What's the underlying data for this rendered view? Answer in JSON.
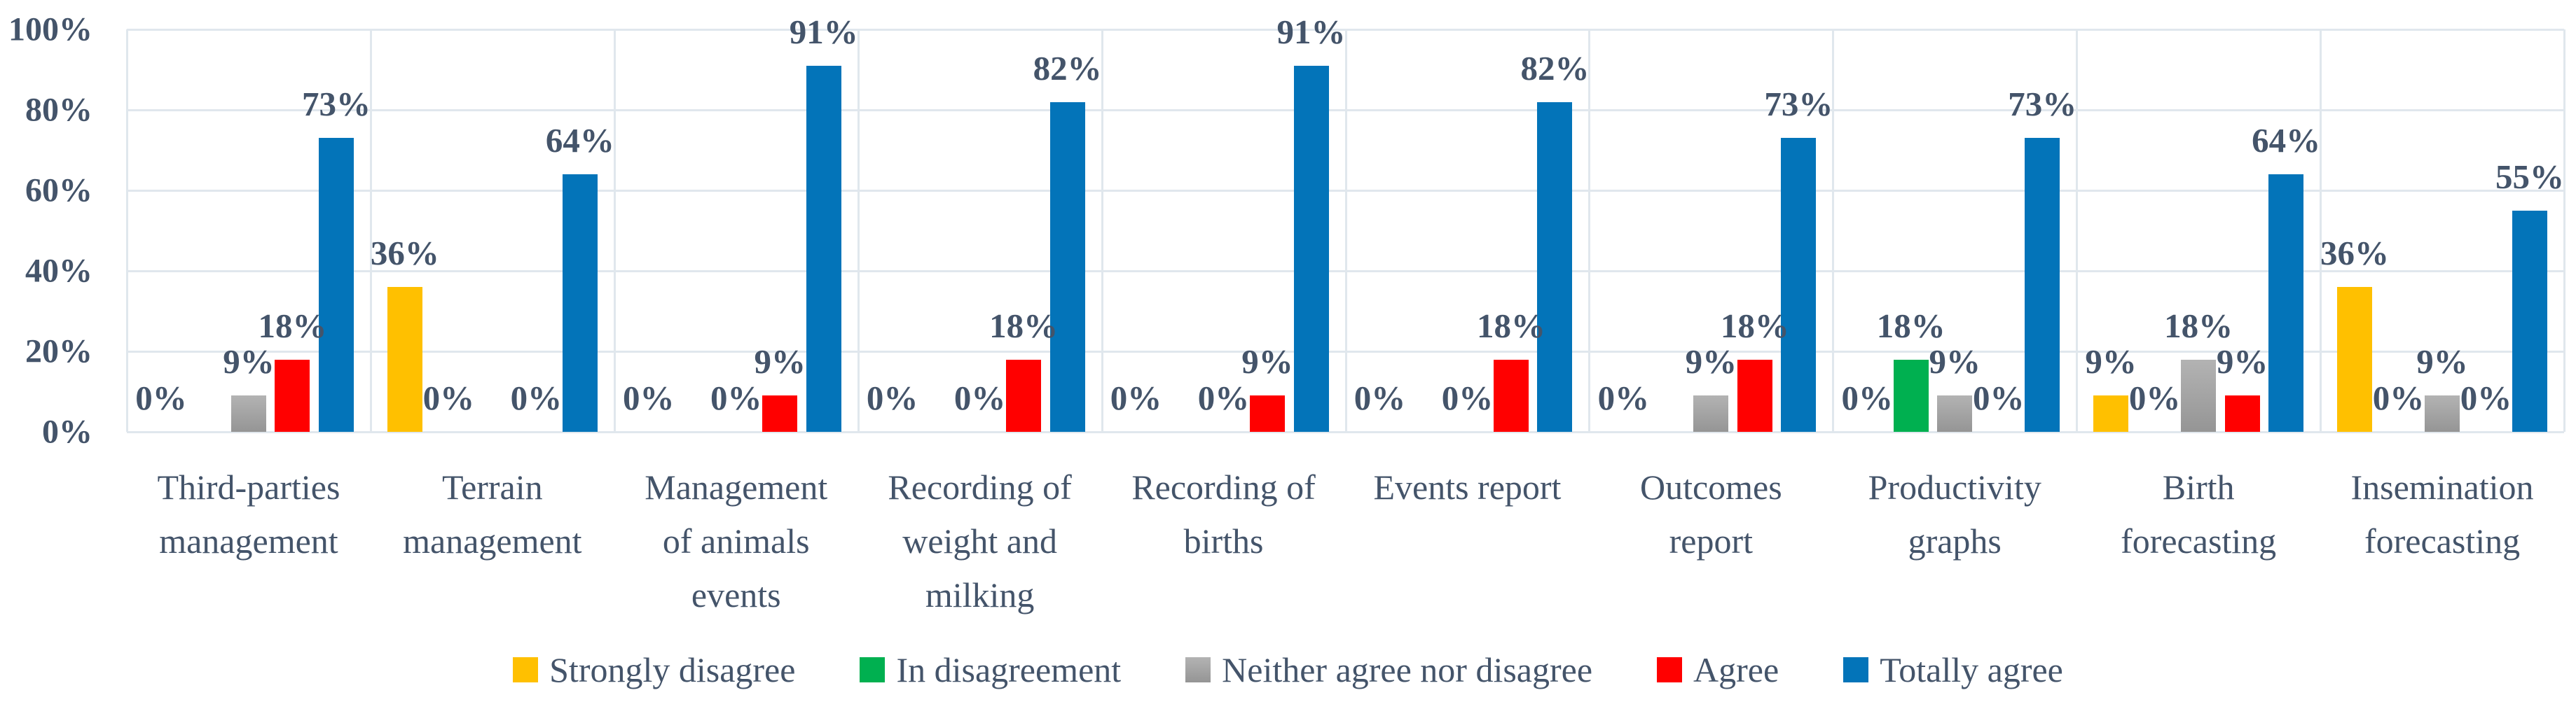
{
  "chart_data": {
    "type": "bar",
    "title": "",
    "xlabel": "",
    "ylabel": "",
    "grid": true,
    "legend_position": "bottom",
    "y_axis": {
      "min": 0,
      "max": 100,
      "step": 20,
      "ticks": [
        "0%",
        "20%",
        "40%",
        "60%",
        "80%",
        "100%"
      ]
    },
    "categories": [
      "Third-parties\nmanagement",
      "Terrain\nmanagement",
      "Management\nof animals\nevents",
      "Recording of\nweight and\nmilking",
      "Recording of\nbirths",
      "Events report",
      "Outcomes\nreport",
      "Productivity\ngraphs",
      "Birth\nforecasting",
      "Insemination\nforecasting"
    ],
    "series": [
      {
        "name": "Strongly disagree",
        "color": "#FFC000",
        "values": [
          0,
          36,
          0,
          0,
          0,
          0,
          0,
          0,
          9,
          36
        ]
      },
      {
        "name": "In disagreement",
        "color": "#00B050",
        "values": [
          0,
          0,
          0,
          0,
          0,
          0,
          0,
          18,
          0,
          0
        ]
      },
      {
        "name": "Neither agree nor disagree",
        "color": "#A6A6A6",
        "gradient": [
          "#B3B3B3",
          "#959595"
        ],
        "values": [
          9,
          0,
          0,
          0,
          0,
          0,
          9,
          9,
          18,
          9
        ]
      },
      {
        "name": "Agree",
        "color": "#FF0000",
        "values": [
          18,
          0,
          9,
          18,
          9,
          18,
          18,
          0,
          9,
          0
        ]
      },
      {
        "name": "Totally agree",
        "color": "#0374B9",
        "values": [
          73,
          64,
          91,
          82,
          91,
          82,
          73,
          73,
          64,
          55
        ]
      }
    ],
    "data_labels": [
      [
        {
          "slot": 0,
          "value": 0,
          "text": "0%"
        },
        {
          "slot": 2,
          "value": 9,
          "text": "9%"
        },
        {
          "slot": 3,
          "value": 18,
          "text": "18%"
        },
        {
          "slot": 4,
          "value": 73,
          "text": "73%"
        }
      ],
      [
        {
          "slot": 0,
          "value": 36,
          "text": "36%"
        },
        {
          "slot": 1,
          "value": 0,
          "text": "0%"
        },
        {
          "slot": 3,
          "value": 0,
          "text": "0%"
        },
        {
          "slot": 4,
          "value": 64,
          "text": "64%"
        }
      ],
      [
        {
          "slot": 0,
          "value": 0,
          "text": "0%"
        },
        {
          "slot": 2,
          "value": 0,
          "text": "0%"
        },
        {
          "slot": 3,
          "value": 9,
          "text": "9%"
        },
        {
          "slot": 4,
          "value": 91,
          "text": "91%"
        }
      ],
      [
        {
          "slot": 0,
          "value": 0,
          "text": "0%"
        },
        {
          "slot": 2,
          "value": 0,
          "text": "0%"
        },
        {
          "slot": 3,
          "value": 18,
          "text": "18%"
        },
        {
          "slot": 4,
          "value": 82,
          "text": "82%"
        }
      ],
      [
        {
          "slot": 0,
          "value": 0,
          "text": "0%"
        },
        {
          "slot": 2,
          "value": 0,
          "text": "0%"
        },
        {
          "slot": 3,
          "value": 9,
          "text": "9%"
        },
        {
          "slot": 4,
          "value": 91,
          "text": "91%"
        }
      ],
      [
        {
          "slot": 0,
          "value": 0,
          "text": "0%"
        },
        {
          "slot": 2,
          "value": 0,
          "text": "0%"
        },
        {
          "slot": 3,
          "value": 18,
          "text": "18%"
        },
        {
          "slot": 4,
          "value": 82,
          "text": "82%"
        }
      ],
      [
        {
          "slot": 0,
          "value": 0,
          "text": "0%"
        },
        {
          "slot": 2,
          "value": 9,
          "text": "9%"
        },
        {
          "slot": 3,
          "value": 18,
          "text": "18%"
        },
        {
          "slot": 4,
          "value": 73,
          "text": "73%"
        }
      ],
      [
        {
          "slot": 0,
          "value": 0,
          "text": "0%"
        },
        {
          "slot": 1,
          "value": 18,
          "text": "18%"
        },
        {
          "slot": 2,
          "value": 9,
          "text": "9%"
        },
        {
          "slot": 3,
          "value": 0,
          "text": "0%"
        },
        {
          "slot": 4,
          "value": 73,
          "text": "73%"
        }
      ],
      [
        {
          "slot": 0,
          "value": 9,
          "text": "9%"
        },
        {
          "slot": 1,
          "value": 0,
          "text": "0%"
        },
        {
          "slot": 2,
          "value": 18,
          "text": "18%"
        },
        {
          "slot": 3,
          "value": 9,
          "text": "9%"
        },
        {
          "slot": 4,
          "value": 64,
          "text": "64%"
        }
      ],
      [
        {
          "slot": 0,
          "value": 36,
          "text": "36%"
        },
        {
          "slot": 1,
          "value": 0,
          "text": "0%"
        },
        {
          "slot": 2,
          "value": 9,
          "text": "9%"
        },
        {
          "slot": 3,
          "value": 0,
          "text": "0%"
        },
        {
          "slot": 4,
          "value": 55,
          "text": "55%"
        }
      ]
    ],
    "colors": {
      "text": "#44546A",
      "gridline": "#E0E7ED",
      "background": "#FFFFFF"
    }
  }
}
